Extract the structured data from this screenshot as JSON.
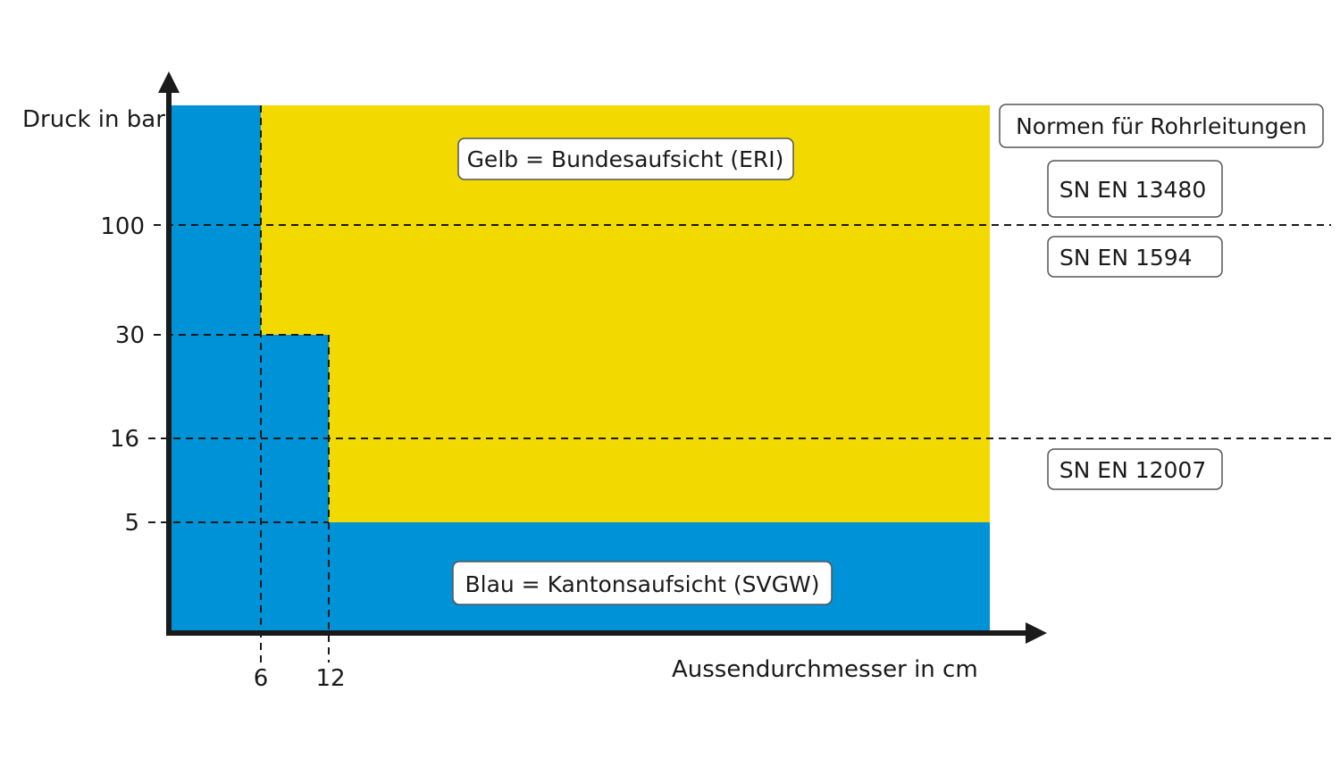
{
  "colors": {
    "blue": "#0092d6",
    "yellow": "#f2d900",
    "axis": "#1a1a1a",
    "box_border": "#555555",
    "background": "#ffffff"
  },
  "axes": {
    "y_label": "Druck in bar",
    "x_label": "Aussendurchmesser in cm",
    "y_ticks": [
      "100",
      "30",
      "16",
      "5"
    ],
    "x_ticks": [
      "6",
      "12"
    ]
  },
  "regions": {
    "yellow_label": "Gelb = Bundesaufsicht (ERI)",
    "blue_label": "Blau = Kantonsaufsicht (SVGW)"
  },
  "norms": {
    "title": "Normen für Rohrleitungen",
    "items": [
      "SN EN 13480",
      "SN EN 1594",
      "SN EN 12007"
    ]
  },
  "chart_data": {
    "type": "area",
    "x_ticks_cm": [
      6,
      12
    ],
    "y_ticks_bar": [
      5,
      16,
      30,
      100
    ],
    "regions": [
      {
        "name": "Blau = Kantonsaufsicht (SVGW)",
        "color": "#0092d6",
        "rule": "pressure <= 5 bar for all diameters; pressure <= 30 bar for diameter <= 12 cm; any pressure for diameter <= 6 cm"
      },
      {
        "name": "Gelb = Bundesaufsicht (ERI)",
        "color": "#f2d900",
        "rule": "pressure > 5 bar and diameter > 12 cm; pressure > 30 bar and diameter > 6 cm"
      }
    ],
    "norm_ranges": [
      {
        "norm": "SN EN 13480",
        "pressure": "> 100 bar"
      },
      {
        "norm": "SN EN 1594",
        "pressure": "16 – 100 bar"
      },
      {
        "norm": "SN EN 12007",
        "pressure": "<= 16 bar"
      }
    ]
  }
}
